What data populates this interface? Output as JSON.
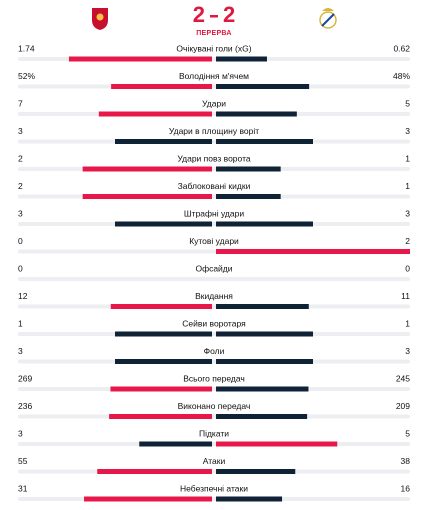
{
  "header": {
    "score": {
      "home": 2,
      "away": 2
    },
    "status": "ПЕРЕРВА"
  },
  "stats": [
    {
      "label": "Очікувані голи (xG)",
      "home": 1.74,
      "away": 0.62
    },
    {
      "label": "Володіння м'ячем",
      "home": {
        "value": 52,
        "label": "52%"
      },
      "away": {
        "value": 48,
        "label": "48%"
      }
    },
    {
      "label": "Удари",
      "home": 7,
      "away": 5
    },
    {
      "label": "Удари в площину воріт",
      "home": 3,
      "away": 3
    },
    {
      "label": "Удари повз ворота",
      "home": 2,
      "away": 1
    },
    {
      "label": "Заблоковані кидки",
      "home": 2,
      "away": 1
    },
    {
      "label": "Штрафні удари",
      "home": 3,
      "away": 3
    },
    {
      "label": "Кутові удари",
      "home": 0,
      "away": 2
    },
    {
      "label": "Офсайди",
      "home": 0,
      "away": 0
    },
    {
      "label": "Вкидання",
      "home": 12,
      "away": 11
    },
    {
      "label": "Сейви воротаря",
      "home": 1,
      "away": 1
    },
    {
      "label": "Фоли",
      "home": 3,
      "away": 3
    },
    {
      "label": "Всього передач",
      "home": 269,
      "away": 245
    },
    {
      "label": "Виконано передач",
      "home": 236,
      "away": 209
    },
    {
      "label": "Підкати",
      "home": 3,
      "away": 5
    },
    {
      "label": "Атаки",
      "home": 55,
      "away": 38
    },
    {
      "label": "Небезпечні атаки",
      "home": 31,
      "away": 16
    }
  ]
}
